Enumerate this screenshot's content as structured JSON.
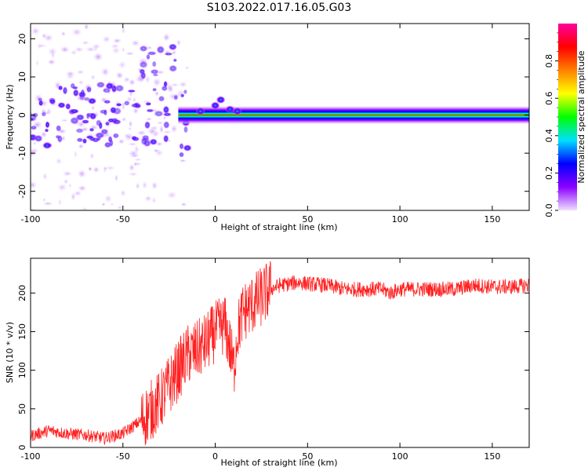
{
  "figure": {
    "title": "S103.2022.017.16.05.G03"
  },
  "chart_data": [
    {
      "type": "heatmap",
      "xlabel": "Height of straight line (km)",
      "ylabel": "Frequency (Hz)",
      "xlim": [
        -100,
        170
      ],
      "ylim": [
        -25,
        24
      ],
      "xticks": [
        -100,
        -50,
        0,
        50,
        100,
        150
      ],
      "yticks": [
        -20,
        -10,
        0,
        10,
        20
      ],
      "colorbar": {
        "label": "Normalized spectral amplitude",
        "range": [
          0,
          1
        ],
        "ticks": [
          0.0,
          0.2,
          0.4,
          0.6,
          0.8
        ],
        "tick_labels": [
          "0.0",
          "0.2",
          "0.4",
          "0.6",
          "0.8"
        ],
        "colors": [
          "#f0e0ff",
          "#8a00ff",
          "#0000ff",
          "#00e0ff",
          "#00ff00",
          "#ffff00",
          "#ff8000",
          "#ff0000",
          "#ff00a0"
        ]
      },
      "ridge": {
        "description": "Dominant narrow band near 0 Hz for heights above about -20 km; scattered weak blobs between -100 and -20 km",
        "x_start": -20,
        "x_end": 170,
        "frequency": 0
      }
    },
    {
      "type": "line",
      "xlabel": "Height of straight line (km)",
      "ylabel": "SNR (10 * v/v)",
      "xlim": [
        -100,
        170
      ],
      "ylim": [
        0,
        245
      ],
      "xticks": [
        -100,
        -50,
        0,
        50,
        100,
        150
      ],
      "yticks": [
        0,
        50,
        100,
        150,
        200
      ],
      "color": "#ff2020",
      "series": [
        {
          "x": [
            -100,
            -90,
            -80,
            -70,
            -60,
            -50,
            -40,
            -30,
            -25,
            -20,
            -15,
            -10,
            -5,
            0,
            5,
            8,
            10,
            12,
            15,
            20,
            25,
            30,
            35,
            40,
            45,
            50,
            60,
            70,
            80,
            90,
            95,
            100,
            110,
            120,
            130,
            140,
            150,
            160,
            170
          ],
          "values": [
            15,
            22,
            18,
            16,
            12,
            18,
            35,
            60,
            80,
            100,
            120,
            125,
            135,
            150,
            160,
            130,
            100,
            150,
            175,
            185,
            195,
            205,
            210,
            212,
            214,
            212,
            210,
            205,
            205,
            205,
            200,
            205,
            205,
            205,
            205,
            210,
            208,
            208,
            210
          ]
        }
      ]
    }
  ]
}
